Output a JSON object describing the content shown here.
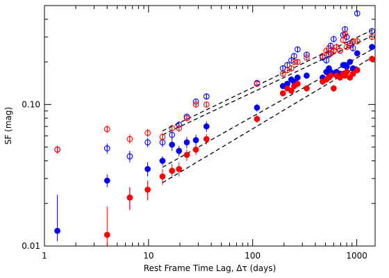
{
  "chart_data": {
    "type": "scatter",
    "title": "",
    "xlabel": "Rest Frame Time Lag, Δτ (days)",
    "ylabel": "SF (mag)",
    "x_scale": "log",
    "y_scale": "log",
    "xlim": [
      1,
      1500
    ],
    "ylim": [
      0.01,
      0.5
    ],
    "x_ticks": [
      {
        "value": 1,
        "label": "1"
      },
      {
        "value": 10,
        "label": "10"
      },
      {
        "value": 100,
        "label": "100"
      },
      {
        "value": 1000,
        "label": "1000"
      }
    ],
    "y_ticks": [
      {
        "value": 0.01,
        "label": "0.01"
      },
      {
        "value": 0.1,
        "label": "0.10"
      }
    ],
    "grid": false,
    "series": [
      {
        "color": "#0000ff",
        "marker": "open",
        "points": [
          {
            "x": 1.33,
            "y": 0.048,
            "err": 0.003
          },
          {
            "x": 4.0,
            "y": 0.049,
            "err": 0.004
          },
          {
            "x": 6.6,
            "y": 0.043,
            "err": 0.004
          },
          {
            "x": 9.8,
            "y": 0.054,
            "err": 0.004
          },
          {
            "x": 13.6,
            "y": 0.054,
            "err": 0.004
          },
          {
            "x": 16.8,
            "y": 0.061,
            "err": 0.004
          },
          {
            "x": 19.6,
            "y": 0.072,
            "err": 0.004
          },
          {
            "x": 23.3,
            "y": 0.082,
            "err": 0.004
          },
          {
            "x": 28.5,
            "y": 0.105,
            "err": 0.005
          },
          {
            "x": 36.0,
            "y": 0.114,
            "err": 0.006
          },
          {
            "x": 110,
            "y": 0.142,
            "err": 0.006
          },
          {
            "x": 195,
            "y": 0.18,
            "err": 0.009
          },
          {
            "x": 215,
            "y": 0.19,
            "err": 0.01
          },
          {
            "x": 235,
            "y": 0.205,
            "err": 0.01
          },
          {
            "x": 250,
            "y": 0.22,
            "err": 0.011
          },
          {
            "x": 270,
            "y": 0.245,
            "err": 0.012
          },
          {
            "x": 330,
            "y": 0.225,
            "err": 0.011
          },
          {
            "x": 470,
            "y": 0.215,
            "err": 0.011
          },
          {
            "x": 510,
            "y": 0.205,
            "err": 0.011
          },
          {
            "x": 540,
            "y": 0.225,
            "err": 0.012
          },
          {
            "x": 560,
            "y": 0.26,
            "err": 0.013
          },
          {
            "x": 600,
            "y": 0.29,
            "err": 0.015
          },
          {
            "x": 640,
            "y": 0.255,
            "err": 0.013
          },
          {
            "x": 690,
            "y": 0.24,
            "err": 0.012
          },
          {
            "x": 740,
            "y": 0.31,
            "err": 0.016
          },
          {
            "x": 770,
            "y": 0.34,
            "err": 0.017
          },
          {
            "x": 800,
            "y": 0.3,
            "err": 0.015
          },
          {
            "x": 860,
            "y": 0.27,
            "err": 0.014
          },
          {
            "x": 920,
            "y": 0.25,
            "err": 0.013
          },
          {
            "x": 1010,
            "y": 0.44,
            "err": 0.022
          },
          {
            "x": 1400,
            "y": 0.33,
            "err": 0.017
          }
        ]
      },
      {
        "color": "#ff0000",
        "marker": "open",
        "points": [
          {
            "x": 1.33,
            "y": 0.048,
            "err": 0.003
          },
          {
            "x": 4.0,
            "y": 0.067,
            "err": 0.004
          },
          {
            "x": 6.6,
            "y": 0.057,
            "err": 0.004
          },
          {
            "x": 9.8,
            "y": 0.063,
            "err": 0.004
          },
          {
            "x": 13.6,
            "y": 0.059,
            "err": 0.004
          },
          {
            "x": 16.8,
            "y": 0.068,
            "err": 0.004
          },
          {
            "x": 19.6,
            "y": 0.068,
            "err": 0.004
          },
          {
            "x": 23.3,
            "y": 0.08,
            "err": 0.004
          },
          {
            "x": 28.5,
            "y": 0.1,
            "err": 0.005
          },
          {
            "x": 36.0,
            "y": 0.1,
            "err": 0.005
          },
          {
            "x": 110,
            "y": 0.14,
            "err": 0.006
          },
          {
            "x": 195,
            "y": 0.165,
            "err": 0.008
          },
          {
            "x": 215,
            "y": 0.175,
            "err": 0.009
          },
          {
            "x": 235,
            "y": 0.18,
            "err": 0.009
          },
          {
            "x": 250,
            "y": 0.2,
            "err": 0.01
          },
          {
            "x": 270,
            "y": 0.2,
            "err": 0.01
          },
          {
            "x": 330,
            "y": 0.215,
            "err": 0.011
          },
          {
            "x": 470,
            "y": 0.22,
            "err": 0.011
          },
          {
            "x": 510,
            "y": 0.24,
            "err": 0.012
          },
          {
            "x": 540,
            "y": 0.25,
            "err": 0.012
          },
          {
            "x": 560,
            "y": 0.23,
            "err": 0.012
          },
          {
            "x": 600,
            "y": 0.24,
            "err": 0.012
          },
          {
            "x": 640,
            "y": 0.255,
            "err": 0.013
          },
          {
            "x": 690,
            "y": 0.24,
            "err": 0.012
          },
          {
            "x": 740,
            "y": 0.285,
            "err": 0.014
          },
          {
            "x": 770,
            "y": 0.315,
            "err": 0.016
          },
          {
            "x": 800,
            "y": 0.255,
            "err": 0.013
          },
          {
            "x": 860,
            "y": 0.26,
            "err": 0.013
          },
          {
            "x": 920,
            "y": 0.28,
            "err": 0.014
          },
          {
            "x": 1010,
            "y": 0.28,
            "err": 0.014
          },
          {
            "x": 1400,
            "y": 0.3,
            "err": 0.015
          }
        ]
      },
      {
        "color": "#0000ff",
        "marker": "filled",
        "points": [
          {
            "x": 1.33,
            "y": 0.0128,
            "err_lo": 0.002,
            "err_hi": 0.0102
          },
          {
            "x": 4.0,
            "y": 0.029,
            "err": 0.003
          },
          {
            "x": 6.6,
            "y": 0.022,
            "err": 0.004
          },
          {
            "x": 9.8,
            "y": 0.035,
            "err": 0.004
          },
          {
            "x": 13.6,
            "y": 0.04,
            "err": 0.003
          },
          {
            "x": 16.8,
            "y": 0.052,
            "err": 0.005
          },
          {
            "x": 19.6,
            "y": 0.047,
            "err": 0.004
          },
          {
            "x": 23.3,
            "y": 0.054,
            "err": 0.005
          },
          {
            "x": 28.5,
            "y": 0.056,
            "err": 0.005
          },
          {
            "x": 36.0,
            "y": 0.07,
            "err": 0.006
          },
          {
            "x": 110,
            "y": 0.095,
            "err": 0.006
          },
          {
            "x": 195,
            "y": 0.135,
            "err": 0.007
          },
          {
            "x": 215,
            "y": 0.14,
            "err": 0.007
          },
          {
            "x": 235,
            "y": 0.15,
            "err": 0.008
          },
          {
            "x": 250,
            "y": 0.145,
            "err": 0.007
          },
          {
            "x": 270,
            "y": 0.155,
            "err": 0.008
          },
          {
            "x": 330,
            "y": 0.16,
            "err": 0.008
          },
          {
            "x": 470,
            "y": 0.155,
            "err": 0.008
          },
          {
            "x": 510,
            "y": 0.17,
            "err": 0.009
          },
          {
            "x": 540,
            "y": 0.18,
            "err": 0.009
          },
          {
            "x": 560,
            "y": 0.17,
            "err": 0.009
          },
          {
            "x": 600,
            "y": 0.165,
            "err": 0.008
          },
          {
            "x": 640,
            "y": 0.17,
            "err": 0.009
          },
          {
            "x": 690,
            "y": 0.165,
            "err": 0.008
          },
          {
            "x": 740,
            "y": 0.19,
            "err": 0.01
          },
          {
            "x": 770,
            "y": 0.19,
            "err": 0.01
          },
          {
            "x": 800,
            "y": 0.185,
            "err": 0.009
          },
          {
            "x": 860,
            "y": 0.2,
            "err": 0.01
          },
          {
            "x": 920,
            "y": 0.18,
            "err": 0.009
          },
          {
            "x": 1010,
            "y": 0.23,
            "err": 0.012
          },
          {
            "x": 1400,
            "y": 0.255,
            "err": 0.013
          }
        ]
      },
      {
        "color": "#ff0000",
        "marker": "filled",
        "points": [
          {
            "x": 4.0,
            "y": 0.012,
            "err_lo": 0.002,
            "err_hi": 0.007
          },
          {
            "x": 6.6,
            "y": 0.022,
            "err": 0.004
          },
          {
            "x": 9.8,
            "y": 0.025,
            "err": 0.004
          },
          {
            "x": 13.6,
            "y": 0.031,
            "err": 0.004
          },
          {
            "x": 16.8,
            "y": 0.034,
            "err": 0.004
          },
          {
            "x": 19.6,
            "y": 0.035,
            "err": 0.004
          },
          {
            "x": 23.3,
            "y": 0.044,
            "err": 0.004
          },
          {
            "x": 28.5,
            "y": 0.048,
            "err": 0.004
          },
          {
            "x": 36.0,
            "y": 0.057,
            "err": 0.005
          },
          {
            "x": 110,
            "y": 0.079,
            "err": 0.005
          },
          {
            "x": 195,
            "y": 0.12,
            "err": 0.006
          },
          {
            "x": 215,
            "y": 0.13,
            "err": 0.007
          },
          {
            "x": 235,
            "y": 0.125,
            "err": 0.006
          },
          {
            "x": 250,
            "y": 0.135,
            "err": 0.007
          },
          {
            "x": 270,
            "y": 0.14,
            "err": 0.007
          },
          {
            "x": 330,
            "y": 0.13,
            "err": 0.007
          },
          {
            "x": 470,
            "y": 0.145,
            "err": 0.007
          },
          {
            "x": 510,
            "y": 0.15,
            "err": 0.008
          },
          {
            "x": 540,
            "y": 0.155,
            "err": 0.008
          },
          {
            "x": 560,
            "y": 0.16,
            "err": 0.008
          },
          {
            "x": 600,
            "y": 0.13,
            "err": 0.007
          },
          {
            "x": 640,
            "y": 0.16,
            "err": 0.008
          },
          {
            "x": 690,
            "y": 0.155,
            "err": 0.008
          },
          {
            "x": 740,
            "y": 0.165,
            "err": 0.008
          },
          {
            "x": 770,
            "y": 0.16,
            "err": 0.008
          },
          {
            "x": 800,
            "y": 0.17,
            "err": 0.009
          },
          {
            "x": 860,
            "y": 0.155,
            "err": 0.008
          },
          {
            "x": 920,
            "y": 0.165,
            "err": 0.008
          },
          {
            "x": 1010,
            "y": 0.175,
            "err": 0.009
          },
          {
            "x": 1400,
            "y": 0.21,
            "err": 0.011
          }
        ]
      }
    ],
    "fit_lines": [
      {
        "x": [
          13.6,
          1400
        ],
        "y": [
          0.065,
          0.335
        ],
        "style": "dashed",
        "color": "#000000"
      },
      {
        "x": [
          13.6,
          1400
        ],
        "y": [
          0.061,
          0.305
        ],
        "style": "dashed",
        "color": "#000000"
      },
      {
        "x": [
          13.6,
          1400
        ],
        "y": [
          0.036,
          0.245
        ],
        "style": "dashed",
        "color": "#000000"
      },
      {
        "x": [
          13.6,
          1400
        ],
        "y": [
          0.028,
          0.215
        ],
        "style": "dashed",
        "color": "#000000"
      }
    ]
  }
}
